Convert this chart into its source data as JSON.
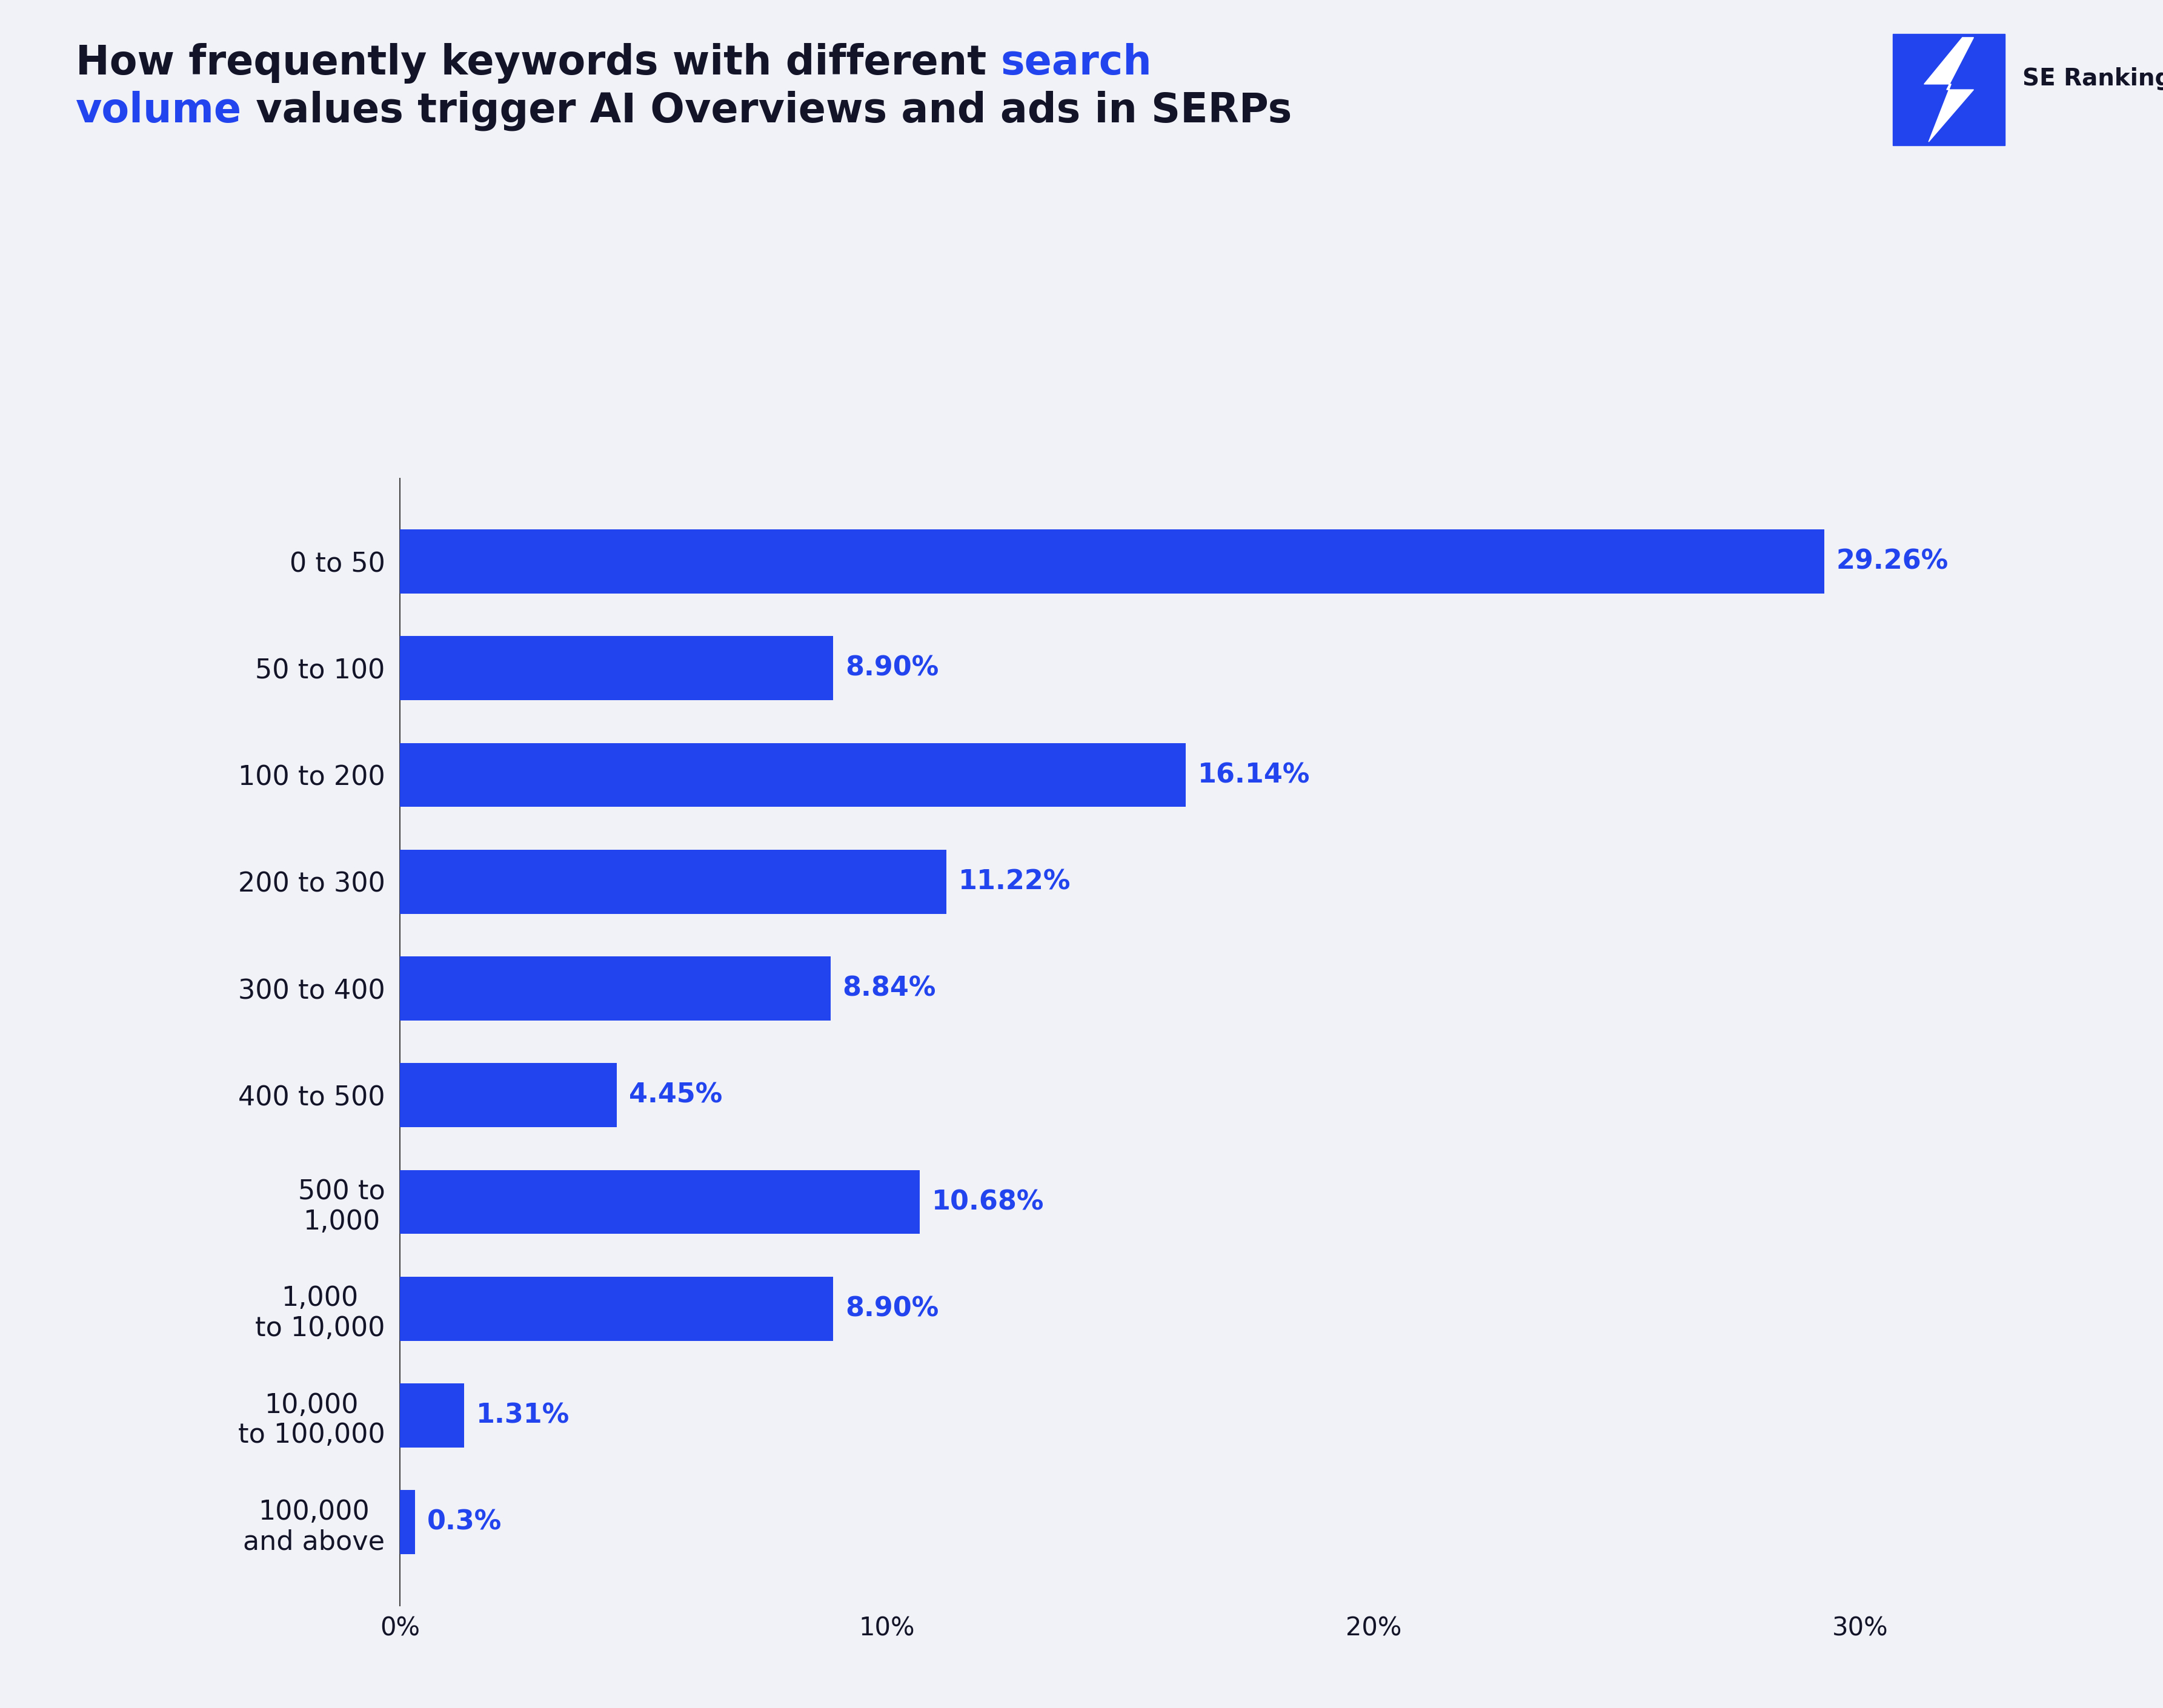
{
  "categories": [
    "0 to 50",
    "50 to 100",
    "100 to 200",
    "200 to 300",
    "300 to 400",
    "400 to 500",
    "500 to\n1,000",
    "1,000\nto 10,000",
    "10,000\nto 100,000",
    "100,000\nand above"
  ],
  "values": [
    29.26,
    8.9,
    16.14,
    11.22,
    8.84,
    4.45,
    10.68,
    8.9,
    1.31,
    0.3
  ],
  "labels": [
    "29.26%",
    "8.90%",
    "16.14%",
    "11.22%",
    "8.84%",
    "4.45%",
    "10.68%",
    "8.90%",
    "1.31%",
    "0.3%"
  ],
  "bar_color": "#2244ee",
  "label_color": "#2244ee",
  "background_color": "#f0f2f8",
  "title_color_black": "#141428",
  "title_color_blue": "#2244ee",
  "xlim": [
    0,
    32
  ],
  "xticks": [
    0,
    10,
    20,
    30
  ],
  "xticklabels": [
    "0%",
    "10%",
    "20%",
    "30%"
  ],
  "bar_height": 0.6,
  "label_fontsize": 32,
  "tick_fontsize": 30,
  "ytick_fontsize": 32,
  "title_fontsize": 48,
  "logo_text": "SE Ranking",
  "logo_fontsize": 28,
  "title_line1_black": "How frequently keywords with different ",
  "title_line1_blue": "search",
  "title_line2_blue": "volume",
  "title_line2_black": " values trigger AI Overviews and ads in SERPs"
}
